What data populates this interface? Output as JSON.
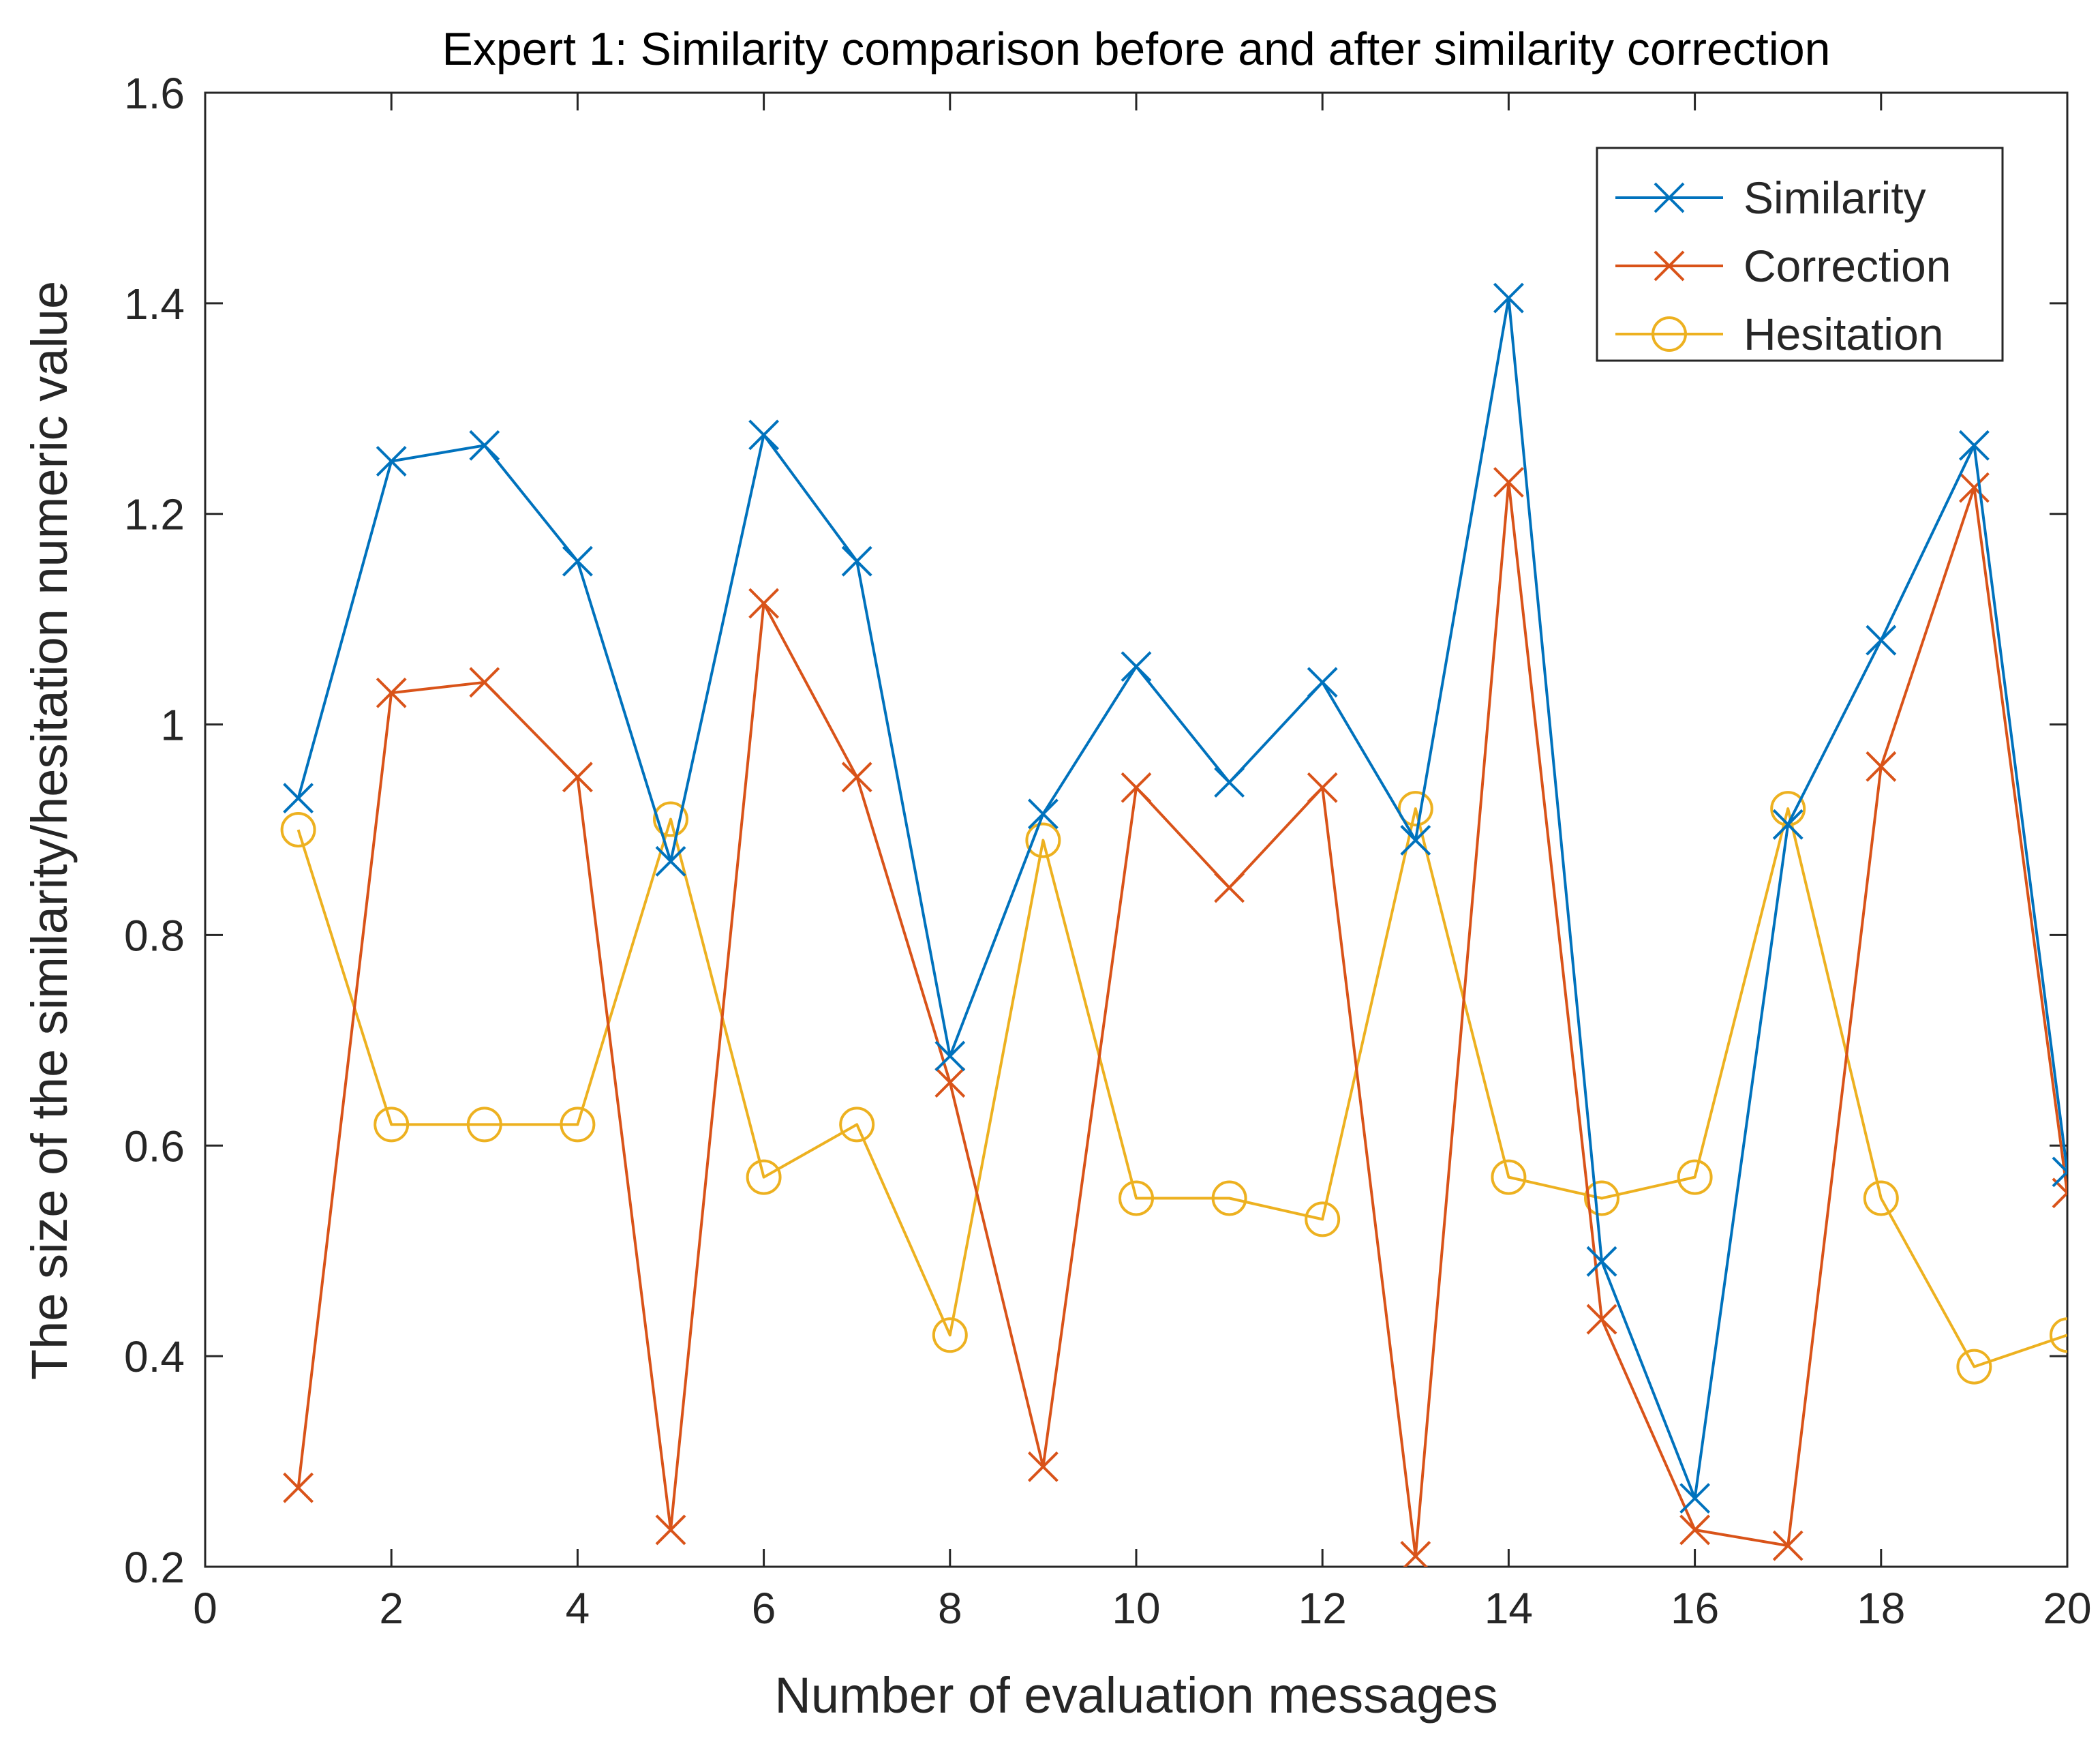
{
  "chart_data": {
    "type": "line",
    "title": "Expert 1: Similarity comparison before and after similarity correction",
    "xlabel": "Number of evaluation messages",
    "ylabel": "The size of the similarity/hesitation numeric value",
    "xlim": [
      0,
      20
    ],
    "ylim": [
      0.2,
      1.6
    ],
    "xticks": [
      "0",
      "2",
      "4",
      "6",
      "8",
      "10",
      "12",
      "14",
      "16",
      "18",
      "20"
    ],
    "yticks": [
      "0.2",
      "0.4",
      "0.6",
      "0.8",
      "1",
      "1.2",
      "1.4",
      "1.6"
    ],
    "grid": false,
    "legend_position": "top-right",
    "x": [
      1,
      2,
      3,
      4,
      5,
      6,
      7,
      8,
      9,
      10,
      11,
      12,
      13,
      14,
      15,
      16,
      17,
      18,
      19,
      20
    ],
    "series": [
      {
        "name": "Similarity",
        "color": "#0072BD",
        "marker": "x",
        "values": [
          0.93,
          1.25,
          1.265,
          1.155,
          0.87,
          1.275,
          1.155,
          0.685,
          0.915,
          1.055,
          0.945,
          1.04,
          0.89,
          1.405,
          0.49,
          0.265,
          0.905,
          1.08,
          1.265,
          0.575
        ]
      },
      {
        "name": "Correction",
        "color": "#D95319",
        "marker": "x",
        "values": [
          0.275,
          1.03,
          1.04,
          0.95,
          0.235,
          1.115,
          0.95,
          0.66,
          0.295,
          0.94,
          0.845,
          0.94,
          0.21,
          1.23,
          0.435,
          0.235,
          0.22,
          0.96,
          1.225,
          0.555
        ]
      },
      {
        "name": "Hesitation",
        "color": "#EDB120",
        "marker": "o",
        "values": [
          0.9,
          0.62,
          0.62,
          0.62,
          0.91,
          0.57,
          0.62,
          0.42,
          0.89,
          0.55,
          0.55,
          0.53,
          0.92,
          0.57,
          0.55,
          0.57,
          0.92,
          0.55,
          0.39,
          0.42
        ]
      }
    ]
  }
}
